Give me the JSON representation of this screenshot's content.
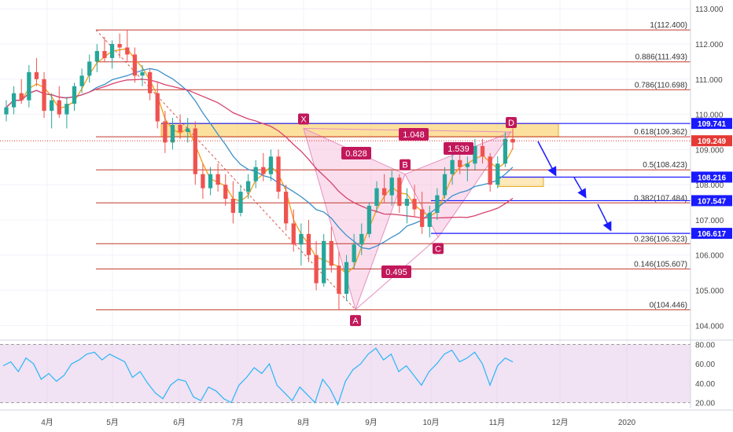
{
  "chart_data": [
    {
      "type": "candlestick",
      "price_axis": {
        "ylim": [
          103.65,
          113.25
        ],
        "ticks": [
          "113.000",
          "112.000",
          "111.000",
          "110.000",
          "109.000",
          "108.000",
          "107.000",
          "106.000",
          "105.000",
          "104.000"
        ],
        "tick_values": [
          113,
          112,
          111,
          110,
          109,
          108,
          107,
          106,
          105,
          104
        ]
      },
      "x_axis": {
        "tick_labels": [
          "4月",
          "5月",
          "6月",
          "7月",
          "8月",
          "9月",
          "10月",
          "11月",
          "12月",
          "2020"
        ]
      },
      "colors": {
        "up": "#26a69a",
        "down": "#ef5350",
        "fib_line": "#c0392b",
        "level_line": "#1a1aff",
        "zone_fill": "#f9c74f",
        "pattern_fill": "#f4b6d7",
        "label_bg": "#c2185b",
        "ma_fast": "#f39c12",
        "ma_mid": "#3a8fc9",
        "ma_slow": "#d8436e",
        "current_price": "#e53935",
        "arrow": "#1a1aff"
      },
      "fib_levels": [
        {
          "label": "1(112.400)",
          "value": 112.4
        },
        {
          "label": "0.886(111.493)",
          "value": 111.493
        },
        {
          "label": "0.786(110.698)",
          "value": 110.698
        },
        {
          "label": "0.618(109.362)",
          "value": 109.362
        },
        {
          "label": "0.5(108.423)",
          "value": 108.423
        },
        {
          "label": "0.382(107.484)",
          "value": 107.484
        },
        {
          "label": "0.236(106.323)",
          "value": 106.323
        },
        {
          "label": "0.146(105.607)",
          "value": 105.607
        },
        {
          "label": "0(104.446)",
          "value": 104.446
        }
      ],
      "horizontal_levels": [
        {
          "label": "109.741",
          "value": 109.741
        },
        {
          "label": "108.216",
          "value": 108.216
        },
        {
          "label": "107.547",
          "value": 107.547
        },
        {
          "label": "106.617",
          "value": 106.617
        }
      ],
      "current_price": {
        "label": "109.249",
        "value": 109.249
      },
      "pattern_points": [
        {
          "name": "X",
          "value": 109.6
        },
        {
          "name": "A",
          "value": 104.45
        },
        {
          "name": "B",
          "value": 108.3
        },
        {
          "name": "C",
          "value": 106.5
        },
        {
          "name": "D",
          "value": 109.5
        }
      ],
      "pattern_ratios": [
        "0.828",
        "1.048",
        "1.539",
        "0.495"
      ],
      "series": [
        {
          "values": [
            [
              110.0,
              110.4,
              109.8,
              110.2
            ],
            [
              110.2,
              110.8,
              110.0,
              110.6
            ],
            [
              110.6,
              111.0,
              110.3,
              110.4
            ],
            [
              110.4,
              111.4,
              110.2,
              111.2
            ],
            [
              111.2,
              111.6,
              110.8,
              111.0
            ],
            [
              111.0,
              111.2,
              109.9,
              110.1
            ],
            [
              110.1,
              110.6,
              109.6,
              110.4
            ],
            [
              110.4,
              110.8,
              109.9,
              110.0
            ],
            [
              110.0,
              110.5,
              109.6,
              110.3
            ],
            [
              110.3,
              110.9,
              110.1,
              110.8
            ],
            [
              110.8,
              111.3,
              110.6,
              111.1
            ],
            [
              111.1,
              111.7,
              110.9,
              111.5
            ],
            [
              111.5,
              112.0,
              111.2,
              111.8
            ],
            [
              111.8,
              112.2,
              111.5,
              111.6
            ],
            [
              111.6,
              112.1,
              111.3,
              112.0
            ],
            [
              112.0,
              112.3,
              111.6,
              111.9
            ],
            [
              111.9,
              112.4,
              111.5,
              111.7
            ],
            [
              111.7,
              111.9,
              110.9,
              111.1
            ],
            [
              111.1,
              111.4,
              110.8,
              111.2
            ],
            [
              111.2,
              111.3,
              110.4,
              110.6
            ],
            [
              110.6,
              110.9,
              109.6,
              109.8
            ],
            [
              109.8,
              110.1,
              108.9,
              109.2
            ],
            [
              109.2,
              109.9,
              109.0,
              109.7
            ],
            [
              109.7,
              110.0,
              109.3,
              109.5
            ],
            [
              109.5,
              109.9,
              109.2,
              109.6
            ],
            [
              109.6,
              109.8,
              108.0,
              108.3
            ],
            [
              108.3,
              108.6,
              107.6,
              107.9
            ],
            [
              107.9,
              108.5,
              107.7,
              108.3
            ],
            [
              108.3,
              108.6,
              107.8,
              108.0
            ],
            [
              108.0,
              108.3,
              107.4,
              107.6
            ],
            [
              107.6,
              108.1,
              106.9,
              107.2
            ],
            [
              107.2,
              108.0,
              107.1,
              107.8
            ],
            [
              107.8,
              108.3,
              107.6,
              108.1
            ],
            [
              108.1,
              108.7,
              107.9,
              108.5
            ],
            [
              108.5,
              108.9,
              108.1,
              108.3
            ],
            [
              108.3,
              109.0,
              108.1,
              108.8
            ],
            [
              108.8,
              109.0,
              107.6,
              107.8
            ],
            [
              107.8,
              108.0,
              106.7,
              106.9
            ],
            [
              106.9,
              107.3,
              106.1,
              106.3
            ],
            [
              106.3,
              106.9,
              105.7,
              106.6
            ],
            [
              106.6,
              107.0,
              105.8,
              106.0
            ],
            [
              106.0,
              106.4,
              105.0,
              105.2
            ],
            [
              105.2,
              106.6,
              105.1,
              106.4
            ],
            [
              106.4,
              106.8,
              105.5,
              105.7
            ],
            [
              105.7,
              106.1,
              104.45,
              104.9
            ],
            [
              104.9,
              106.0,
              104.7,
              105.8
            ],
            [
              105.8,
              106.6,
              105.6,
              106.3
            ],
            [
              106.3,
              106.9,
              106.0,
              106.6
            ],
            [
              106.6,
              107.5,
              106.5,
              107.4
            ],
            [
              107.4,
              108.1,
              107.2,
              107.9
            ],
            [
              107.9,
              108.3,
              107.5,
              107.7
            ],
            [
              107.7,
              108.4,
              107.4,
              108.2
            ],
            [
              108.2,
              108.3,
              107.2,
              107.4
            ],
            [
              107.4,
              107.9,
              106.9,
              107.6
            ],
            [
              107.6,
              108.0,
              107.1,
              107.3
            ],
            [
              107.3,
              107.8,
              106.6,
              106.8
            ],
            [
              106.8,
              107.4,
              106.5,
              107.2
            ],
            [
              107.2,
              107.9,
              107.0,
              107.7
            ],
            [
              107.7,
              108.5,
              107.6,
              108.3
            ],
            [
              108.3,
              108.9,
              108.0,
              108.7
            ],
            [
              108.7,
              109.0,
              108.3,
              108.5
            ],
            [
              108.5,
              108.8,
              108.1,
              108.6
            ],
            [
              108.6,
              109.3,
              108.4,
              109.1
            ],
            [
              109.1,
              109.3,
              108.6,
              108.8
            ],
            [
              108.8,
              108.9,
              107.8,
              108.0
            ],
            [
              108.0,
              108.8,
              107.9,
              108.6
            ],
            [
              108.6,
              109.5,
              108.5,
              109.3
            ],
            [
              109.3,
              109.6,
              109.0,
              109.2
            ]
          ]
        }
      ],
      "rsi": {
        "ticks": [
          "80.00",
          "60.00",
          "40.00",
          "20.00"
        ],
        "tick_values": [
          80,
          60,
          40,
          20
        ],
        "ylim": [
          14,
          82
        ],
        "values": [
          58,
          62,
          52,
          66,
          60,
          44,
          50,
          42,
          48,
          60,
          64,
          70,
          72,
          64,
          70,
          66,
          62,
          46,
          52,
          40,
          30,
          24,
          38,
          44,
          42,
          26,
          22,
          36,
          32,
          24,
          20,
          38,
          46,
          56,
          50,
          60,
          38,
          30,
          22,
          36,
          28,
          20,
          44,
          34,
          18,
          42,
          54,
          60,
          70,
          76,
          64,
          70,
          52,
          58,
          48,
          38,
          52,
          60,
          70,
          74,
          62,
          66,
          72,
          60,
          38,
          58,
          66,
          62
        ]
      }
    }
  ]
}
